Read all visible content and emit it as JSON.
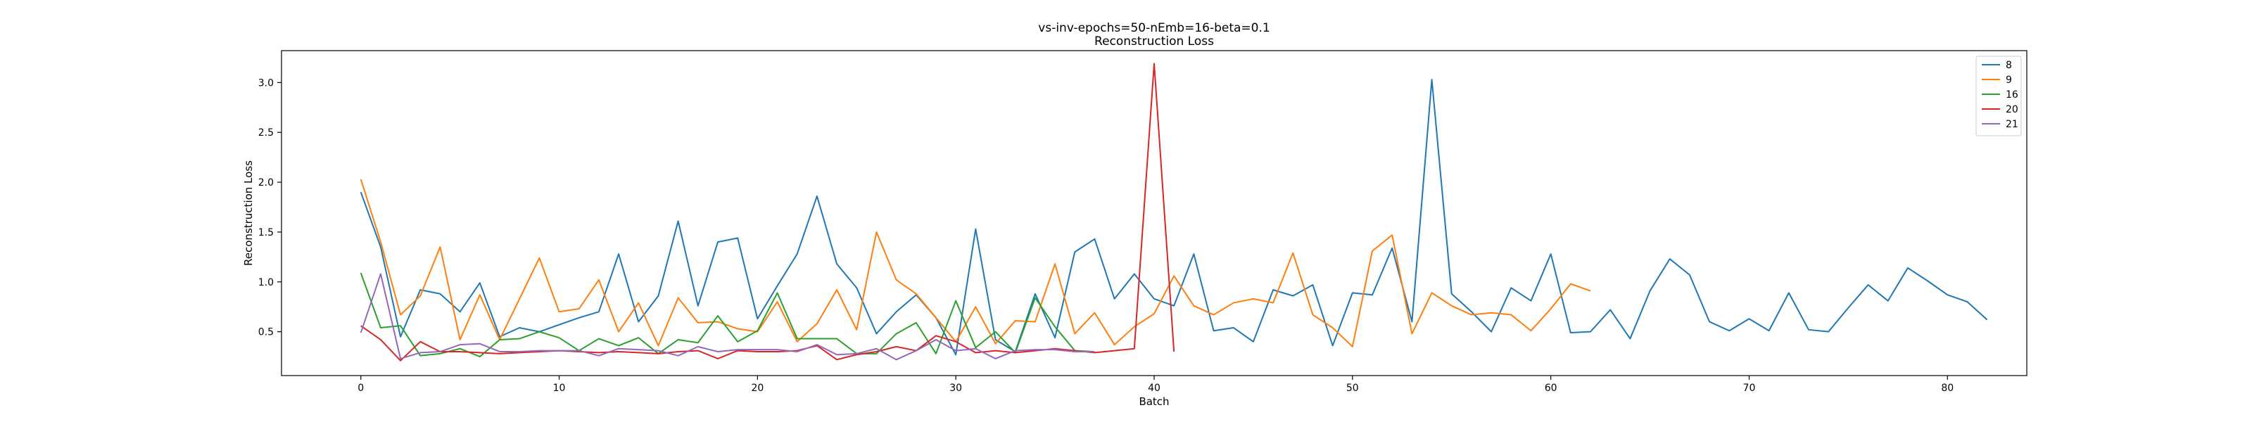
{
  "chart_data": {
    "type": "line",
    "title": "vs-inv-epochs=50-nEmb=16-beta=0.1",
    "subtitle": "Reconstruction Loss",
    "xlabel": "Batch",
    "ylabel": "Reconstruction Loss",
    "xlim": [
      -4,
      84
    ],
    "ylim": [
      0.06,
      3.32
    ],
    "xticks": [
      0,
      10,
      20,
      30,
      40,
      50,
      60,
      70,
      80
    ],
    "yticks": [
      0.5,
      1.0,
      1.5,
      2.0,
      2.5,
      3.0
    ],
    "ytick_labels": [
      "0.5",
      "1.0",
      "1.5",
      "2.0",
      "2.5",
      "3.0"
    ],
    "grid": false,
    "legend_position": "top-right",
    "series": [
      {
        "name": "8",
        "color": "#1f77b4",
        "values": [
          1.9,
          1.35,
          0.45,
          0.92,
          0.88,
          0.7,
          0.99,
          0.45,
          0.54,
          0.5,
          0.57,
          0.64,
          0.7,
          1.28,
          0.6,
          0.86,
          1.61,
          0.76,
          1.4,
          1.44,
          0.63,
          0.96,
          1.28,
          1.86,
          1.18,
          0.94,
          0.48,
          0.7,
          0.87,
          0.64,
          0.27,
          1.53,
          0.42,
          0.3,
          0.88,
          0.44,
          1.3,
          1.43,
          0.83,
          1.08,
          0.83,
          0.76,
          1.28,
          0.51,
          0.54,
          0.4,
          0.92,
          0.86,
          0.97,
          0.36,
          0.89,
          0.87,
          1.34,
          0.6,
          3.03,
          0.88,
          0.7,
          0.5,
          0.94,
          0.81,
          1.28,
          0.49,
          0.5,
          0.72,
          0.43,
          0.91,
          1.23,
          1.07,
          0.6,
          0.51,
          0.63,
          0.51,
          0.89,
          0.52,
          0.5,
          0.74,
          0.97,
          0.81,
          1.14,
          1.01,
          0.87,
          0.8,
          0.62
        ]
      },
      {
        "name": "9",
        "color": "#ff7f0e",
        "values": [
          2.03,
          1.4,
          0.67,
          0.86,
          1.35,
          0.42,
          0.87,
          0.42,
          0.83,
          1.24,
          0.7,
          0.73,
          1.02,
          0.5,
          0.79,
          0.36,
          0.84,
          0.59,
          0.6,
          0.53,
          0.5,
          0.8,
          0.4,
          0.58,
          0.92,
          0.52,
          1.5,
          1.02,
          0.88,
          0.64,
          0.4,
          0.75,
          0.38,
          0.61,
          0.6,
          1.18,
          0.48,
          0.69,
          0.37,
          0.55,
          0.68,
          1.06,
          0.76,
          0.67,
          0.79,
          0.83,
          0.79,
          1.29,
          0.67,
          0.54,
          0.35,
          1.31,
          1.47,
          0.48,
          0.89,
          0.76,
          0.67,
          0.69,
          0.67,
          0.51,
          0.73,
          0.98,
          0.91
        ]
      },
      {
        "name": "16",
        "color": "#2ca02c",
        "values": [
          1.09,
          0.54,
          0.56,
          0.26,
          0.28,
          0.33,
          0.25,
          0.42,
          0.43,
          0.5,
          0.44,
          0.31,
          0.43,
          0.36,
          0.44,
          0.28,
          0.42,
          0.39,
          0.66,
          0.4,
          0.51,
          0.89,
          0.43,
          0.43,
          0.43,
          0.28,
          0.28,
          0.48,
          0.59,
          0.28,
          0.81,
          0.34,
          0.5,
          0.29,
          0.84,
          0.55,
          0.31,
          0.3
        ]
      },
      {
        "name": "20",
        "color": "#d62728",
        "values": [
          0.56,
          0.42,
          0.21,
          0.4,
          0.3,
          0.3,
          0.29,
          0.28,
          0.29,
          0.3,
          0.31,
          0.3,
          0.29,
          0.3,
          0.29,
          0.28,
          0.3,
          0.31,
          0.23,
          0.31,
          0.3,
          0.3,
          0.31,
          0.36,
          0.22,
          0.27,
          0.3,
          0.35,
          0.31,
          0.46,
          0.4,
          0.29,
          0.31,
          0.29,
          0.31,
          0.33,
          0.31,
          0.29,
          0.31,
          0.33,
          3.19,
          0.3
        ]
      },
      {
        "name": "21",
        "color": "#9467bd",
        "values": [
          0.49,
          1.08,
          0.23,
          0.29,
          0.3,
          0.37,
          0.38,
          0.3,
          0.3,
          0.31,
          0.31,
          0.31,
          0.26,
          0.33,
          0.32,
          0.31,
          0.26,
          0.35,
          0.3,
          0.32,
          0.32,
          0.32,
          0.3,
          0.37,
          0.27,
          0.28,
          0.33,
          0.22,
          0.31,
          0.42,
          0.31,
          0.33,
          0.23,
          0.31,
          0.32,
          0.32,
          0.3,
          0.3
        ]
      }
    ]
  }
}
